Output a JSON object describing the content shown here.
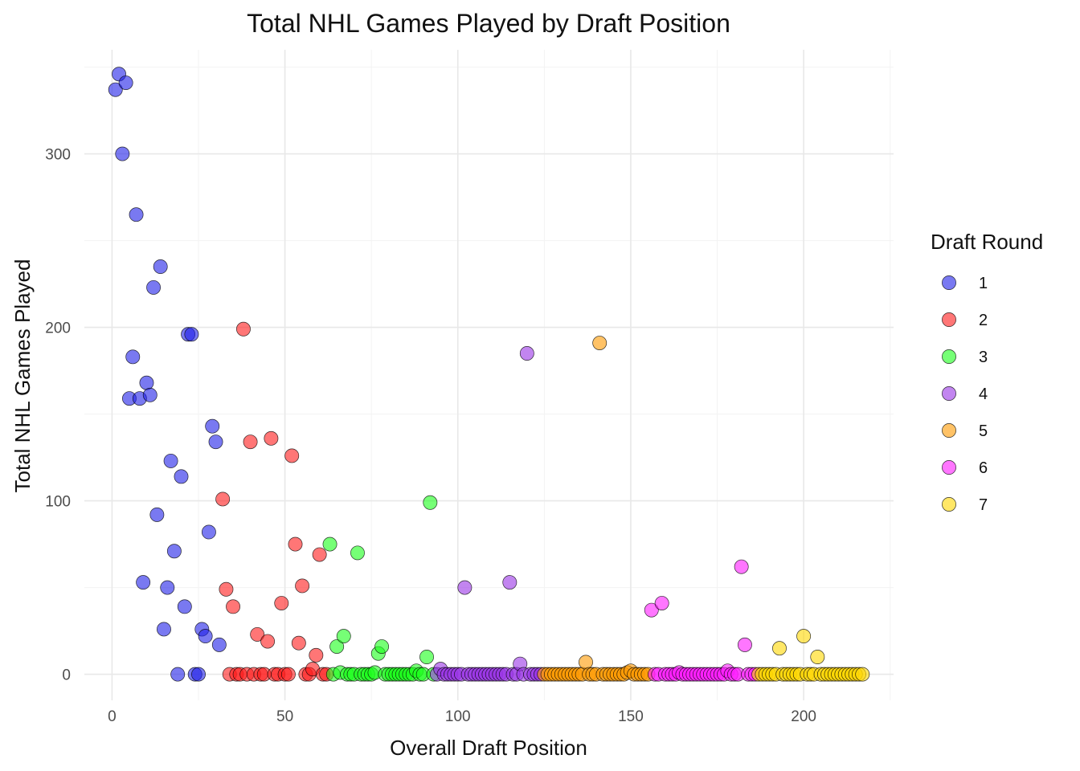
{
  "chart_data": {
    "type": "scatter",
    "title": "Total NHL Games Played by Draft Position",
    "xlabel": "Overall Draft Position",
    "ylabel": "Total NHL Games Played",
    "xlim": [
      -8,
      226
    ],
    "ylim": [
      -15,
      360
    ],
    "x_ticks": [
      0,
      50,
      100,
      150,
      200
    ],
    "y_ticks": [
      0,
      100,
      200,
      300
    ],
    "grid": true,
    "legend": {
      "title": "Draft Round",
      "position": "right"
    },
    "series": [
      {
        "name": "1",
        "color": "#1f1fe8",
        "points": [
          [
            1,
            337
          ],
          [
            2,
            346
          ],
          [
            3,
            300
          ],
          [
            4,
            341
          ],
          [
            5,
            159
          ],
          [
            6,
            183
          ],
          [
            7,
            265
          ],
          [
            8,
            159
          ],
          [
            9,
            53
          ],
          [
            10,
            168
          ],
          [
            11,
            161
          ],
          [
            12,
            223
          ],
          [
            13,
            92
          ],
          [
            14,
            235
          ],
          [
            15,
            26
          ],
          [
            16,
            50
          ],
          [
            17,
            123
          ],
          [
            18,
            71
          ],
          [
            19,
            0
          ],
          [
            20,
            114
          ],
          [
            21,
            39
          ],
          [
            22,
            196
          ],
          [
            23,
            196
          ],
          [
            24,
            0
          ],
          [
            25,
            0
          ],
          [
            26,
            26
          ],
          [
            27,
            22
          ],
          [
            28,
            82
          ],
          [
            29,
            143
          ],
          [
            30,
            134
          ],
          [
            31,
            17
          ]
        ]
      },
      {
        "name": "2",
        "color": "#ff1a1a",
        "points": [
          [
            32,
            101
          ],
          [
            33,
            49
          ],
          [
            34,
            0
          ],
          [
            35,
            39
          ],
          [
            36,
            0
          ],
          [
            37,
            0
          ],
          [
            38,
            199
          ],
          [
            39,
            0
          ],
          [
            40,
            134
          ],
          [
            41,
            0
          ],
          [
            42,
            23
          ],
          [
            43,
            0
          ],
          [
            44,
            0
          ],
          [
            45,
            19
          ],
          [
            46,
            136
          ],
          [
            47,
            0
          ],
          [
            48,
            0
          ],
          [
            49,
            41
          ],
          [
            50,
            0
          ],
          [
            51,
            0
          ],
          [
            52,
            126
          ],
          [
            53,
            75
          ],
          [
            54,
            18
          ],
          [
            55,
            51
          ],
          [
            56,
            0
          ],
          [
            57,
            0
          ],
          [
            58,
            3
          ],
          [
            59,
            11
          ],
          [
            60,
            69
          ],
          [
            61,
            0
          ],
          [
            62,
            0
          ]
        ]
      },
      {
        "name": "3",
        "color": "#1aff1a",
        "points": [
          [
            63,
            75
          ],
          [
            64,
            0
          ],
          [
            65,
            16
          ],
          [
            66,
            1
          ],
          [
            67,
            22
          ],
          [
            68,
            0
          ],
          [
            69,
            0
          ],
          [
            70,
            0
          ],
          [
            71,
            70
          ],
          [
            72,
            0
          ],
          [
            73,
            0
          ],
          [
            74,
            0
          ],
          [
            75,
            0
          ],
          [
            76,
            1
          ],
          [
            77,
            12
          ],
          [
            78,
            16
          ],
          [
            79,
            0
          ],
          [
            80,
            0
          ],
          [
            81,
            0
          ],
          [
            82,
            0
          ],
          [
            83,
            0
          ],
          [
            84,
            0
          ],
          [
            85,
            0
          ],
          [
            86,
            0
          ],
          [
            87,
            0
          ],
          [
            88,
            2
          ],
          [
            89,
            0
          ],
          [
            90,
            0
          ],
          [
            91,
            10
          ],
          [
            92,
            99
          ],
          [
            93,
            0
          ]
        ]
      },
      {
        "name": "4",
        "color": "#9933e6",
        "points": [
          [
            94,
            0
          ],
          [
            95,
            3
          ],
          [
            96,
            0
          ],
          [
            97,
            0
          ],
          [
            98,
            0
          ],
          [
            99,
            0
          ],
          [
            100,
            0
          ],
          [
            101,
            0
          ],
          [
            102,
            50
          ],
          [
            103,
            0
          ],
          [
            104,
            0
          ],
          [
            105,
            0
          ],
          [
            106,
            0
          ],
          [
            107,
            0
          ],
          [
            108,
            0
          ],
          [
            109,
            0
          ],
          [
            110,
            0
          ],
          [
            111,
            0
          ],
          [
            112,
            0
          ],
          [
            113,
            0
          ],
          [
            114,
            0
          ],
          [
            115,
            53
          ],
          [
            116,
            0
          ],
          [
            117,
            0
          ],
          [
            118,
            6
          ],
          [
            119,
            0
          ],
          [
            120,
            185
          ],
          [
            121,
            0
          ],
          [
            122,
            0
          ],
          [
            123,
            0
          ],
          [
            124,
            0
          ]
        ]
      },
      {
        "name": "5",
        "color": "#ff9900",
        "points": [
          [
            125,
            0
          ],
          [
            126,
            0
          ],
          [
            127,
            0
          ],
          [
            128,
            0
          ],
          [
            129,
            0
          ],
          [
            130,
            0
          ],
          [
            131,
            0
          ],
          [
            132,
            0
          ],
          [
            133,
            0
          ],
          [
            134,
            0
          ],
          [
            135,
            0
          ],
          [
            136,
            0
          ],
          [
            137,
            7
          ],
          [
            138,
            0
          ],
          [
            139,
            0
          ],
          [
            140,
            0
          ],
          [
            141,
            191
          ],
          [
            142,
            0
          ],
          [
            143,
            0
          ],
          [
            144,
            0
          ],
          [
            145,
            0
          ],
          [
            146,
            0
          ],
          [
            147,
            0
          ],
          [
            148,
            0
          ],
          [
            149,
            1
          ],
          [
            150,
            2
          ],
          [
            151,
            0
          ],
          [
            152,
            0
          ],
          [
            153,
            0
          ],
          [
            154,
            0
          ],
          [
            155,
            0
          ]
        ]
      },
      {
        "name": "6",
        "color": "#ff1aff",
        "points": [
          [
            156,
            37
          ],
          [
            157,
            0
          ],
          [
            158,
            0
          ],
          [
            159,
            41
          ],
          [
            160,
            0
          ],
          [
            161,
            0
          ],
          [
            162,
            0
          ],
          [
            163,
            0
          ],
          [
            164,
            1
          ],
          [
            165,
            0
          ],
          [
            166,
            0
          ],
          [
            167,
            0
          ],
          [
            168,
            0
          ],
          [
            169,
            0
          ],
          [
            170,
            0
          ],
          [
            171,
            0
          ],
          [
            172,
            0
          ],
          [
            173,
            0
          ],
          [
            174,
            0
          ],
          [
            175,
            0
          ],
          [
            176,
            0
          ],
          [
            177,
            0
          ],
          [
            178,
            2
          ],
          [
            179,
            0
          ],
          [
            180,
            0
          ],
          [
            181,
            0
          ],
          [
            182,
            62
          ],
          [
            183,
            17
          ],
          [
            184,
            0
          ],
          [
            185,
            0
          ],
          [
            186,
            0
          ]
        ]
      },
      {
        "name": "7",
        "color": "#ffd700",
        "points": [
          [
            187,
            0
          ],
          [
            188,
            0
          ],
          [
            189,
            0
          ],
          [
            190,
            0
          ],
          [
            191,
            0
          ],
          [
            192,
            0
          ],
          [
            193,
            15
          ],
          [
            194,
            0
          ],
          [
            195,
            0
          ],
          [
            196,
            0
          ],
          [
            197,
            0
          ],
          [
            198,
            0
          ],
          [
            199,
            0
          ],
          [
            200,
            22
          ],
          [
            201,
            0
          ],
          [
            202,
            0
          ],
          [
            203,
            0
          ],
          [
            204,
            10
          ],
          [
            205,
            0
          ],
          [
            206,
            0
          ],
          [
            207,
            0
          ],
          [
            208,
            0
          ],
          [
            209,
            0
          ],
          [
            210,
            0
          ],
          [
            211,
            0
          ],
          [
            212,
            0
          ],
          [
            213,
            0
          ],
          [
            214,
            0
          ],
          [
            215,
            0
          ],
          [
            216,
            0
          ],
          [
            217,
            0
          ]
        ]
      }
    ]
  }
}
